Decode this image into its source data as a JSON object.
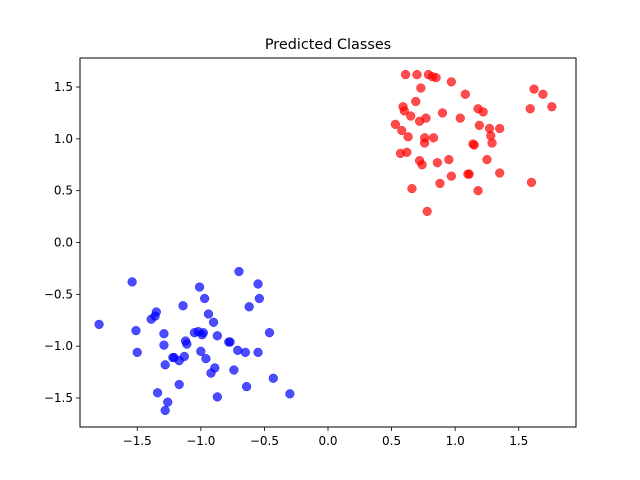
{
  "chart_data": {
    "type": "scatter",
    "title": "Predicted Classes",
    "xlabel": "",
    "ylabel": "",
    "xlim": [
      -1.95,
      1.95
    ],
    "ylim": [
      -1.78,
      1.78
    ],
    "xticks": [
      -1.5,
      -1.0,
      -0.5,
      0.0,
      0.5,
      1.0,
      1.5
    ],
    "yticks": [
      -1.5,
      -1.0,
      -0.5,
      0.0,
      0.5,
      1.0,
      1.5
    ],
    "xtick_labels": [
      "−1.5",
      "−1.0",
      "−0.5",
      "0.0",
      "0.5",
      "1.0",
      "1.5"
    ],
    "ytick_labels": [
      "−1.5",
      "−1.0",
      "−0.5",
      "0.0",
      "0.5",
      "1.0",
      "1.5"
    ],
    "grid": false,
    "series": [
      {
        "color": "#0000ff",
        "alpha": 0.7,
        "points": [
          [
            -1.8,
            -0.79
          ],
          [
            -1.54,
            -0.38
          ],
          [
            -1.51,
            -0.85
          ],
          [
            -1.5,
            -1.06
          ],
          [
            -1.39,
            -0.74
          ],
          [
            -1.36,
            -0.71
          ],
          [
            -1.35,
            -0.67
          ],
          [
            -1.34,
            -1.45
          ],
          [
            -1.29,
            -0.88
          ],
          [
            -1.29,
            -0.99
          ],
          [
            -1.28,
            -1.18
          ],
          [
            -1.28,
            -1.62
          ],
          [
            -1.26,
            -1.54
          ],
          [
            -1.22,
            -1.11
          ],
          [
            -1.21,
            -1.11
          ],
          [
            -1.17,
            -1.14
          ],
          [
            -1.17,
            -1.37
          ],
          [
            -1.14,
            -0.61
          ],
          [
            -1.13,
            -1.1
          ],
          [
            -1.12,
            -0.95
          ],
          [
            -1.11,
            -0.98
          ],
          [
            -1.05,
            -0.87
          ],
          [
            -1.02,
            -0.86
          ],
          [
            -1.01,
            -0.43
          ],
          [
            -1.0,
            -1.05
          ],
          [
            -0.99,
            -0.89
          ],
          [
            -0.98,
            -0.87
          ],
          [
            -0.97,
            -0.54
          ],
          [
            -0.96,
            -1.12
          ],
          [
            -0.94,
            -0.69
          ],
          [
            -0.92,
            -1.26
          ],
          [
            -0.9,
            -0.77
          ],
          [
            -0.89,
            -1.21
          ],
          [
            -0.87,
            -0.9
          ],
          [
            -0.87,
            -1.49
          ],
          [
            -0.78,
            -0.96
          ],
          [
            -0.77,
            -0.96
          ],
          [
            -0.74,
            -1.23
          ],
          [
            -0.71,
            -1.04
          ],
          [
            -0.7,
            -0.28
          ],
          [
            -0.65,
            -1.06
          ],
          [
            -0.64,
            -1.39
          ],
          [
            -0.62,
            -0.62
          ],
          [
            -0.55,
            -1.06
          ],
          [
            -0.55,
            -0.4
          ],
          [
            -0.54,
            -0.54
          ],
          [
            -0.46,
            -0.87
          ],
          [
            -0.43,
            -1.31
          ],
          [
            -0.3,
            -1.46
          ]
        ]
      },
      {
        "color": "#ff0000",
        "alpha": 0.7,
        "points": [
          [
            0.53,
            1.14
          ],
          [
            0.57,
            0.86
          ],
          [
            0.58,
            1.08
          ],
          [
            0.59,
            1.31
          ],
          [
            0.6,
            1.27
          ],
          [
            0.61,
            1.62
          ],
          [
            0.62,
            0.87
          ],
          [
            0.63,
            1.02
          ],
          [
            0.65,
            1.22
          ],
          [
            0.66,
            0.52
          ],
          [
            0.69,
            1.36
          ],
          [
            0.7,
            1.62
          ],
          [
            0.72,
            1.17
          ],
          [
            0.72,
            0.79
          ],
          [
            0.73,
            1.49
          ],
          [
            0.74,
            0.75
          ],
          [
            0.76,
            1.01
          ],
          [
            0.76,
            0.96
          ],
          [
            0.77,
            1.2
          ],
          [
            0.78,
            0.3
          ],
          [
            0.79,
            1.62
          ],
          [
            0.82,
            1.6
          ],
          [
            0.83,
            1.01
          ],
          [
            0.85,
            1.59
          ],
          [
            0.86,
            0.77
          ],
          [
            0.88,
            0.57
          ],
          [
            0.9,
            1.25
          ],
          [
            0.95,
            0.8
          ],
          [
            0.97,
            0.64
          ],
          [
            0.97,
            1.55
          ],
          [
            1.04,
            1.2
          ],
          [
            1.08,
            1.43
          ],
          [
            1.1,
            0.66
          ],
          [
            1.11,
            0.66
          ],
          [
            1.14,
            0.95
          ],
          [
            1.15,
            0.94
          ],
          [
            1.18,
            1.29
          ],
          [
            1.18,
            0.5
          ],
          [
            1.19,
            1.13
          ],
          [
            1.22,
            1.26
          ],
          [
            1.25,
            0.8
          ],
          [
            1.27,
            1.1
          ],
          [
            1.28,
            1.03
          ],
          [
            1.29,
            0.96
          ],
          [
            1.35,
            1.1
          ],
          [
            1.35,
            0.67
          ],
          [
            1.59,
            1.29
          ],
          [
            1.6,
            0.58
          ],
          [
            1.62,
            1.48
          ],
          [
            1.69,
            1.43
          ],
          [
            1.76,
            1.31
          ]
        ]
      }
    ]
  }
}
